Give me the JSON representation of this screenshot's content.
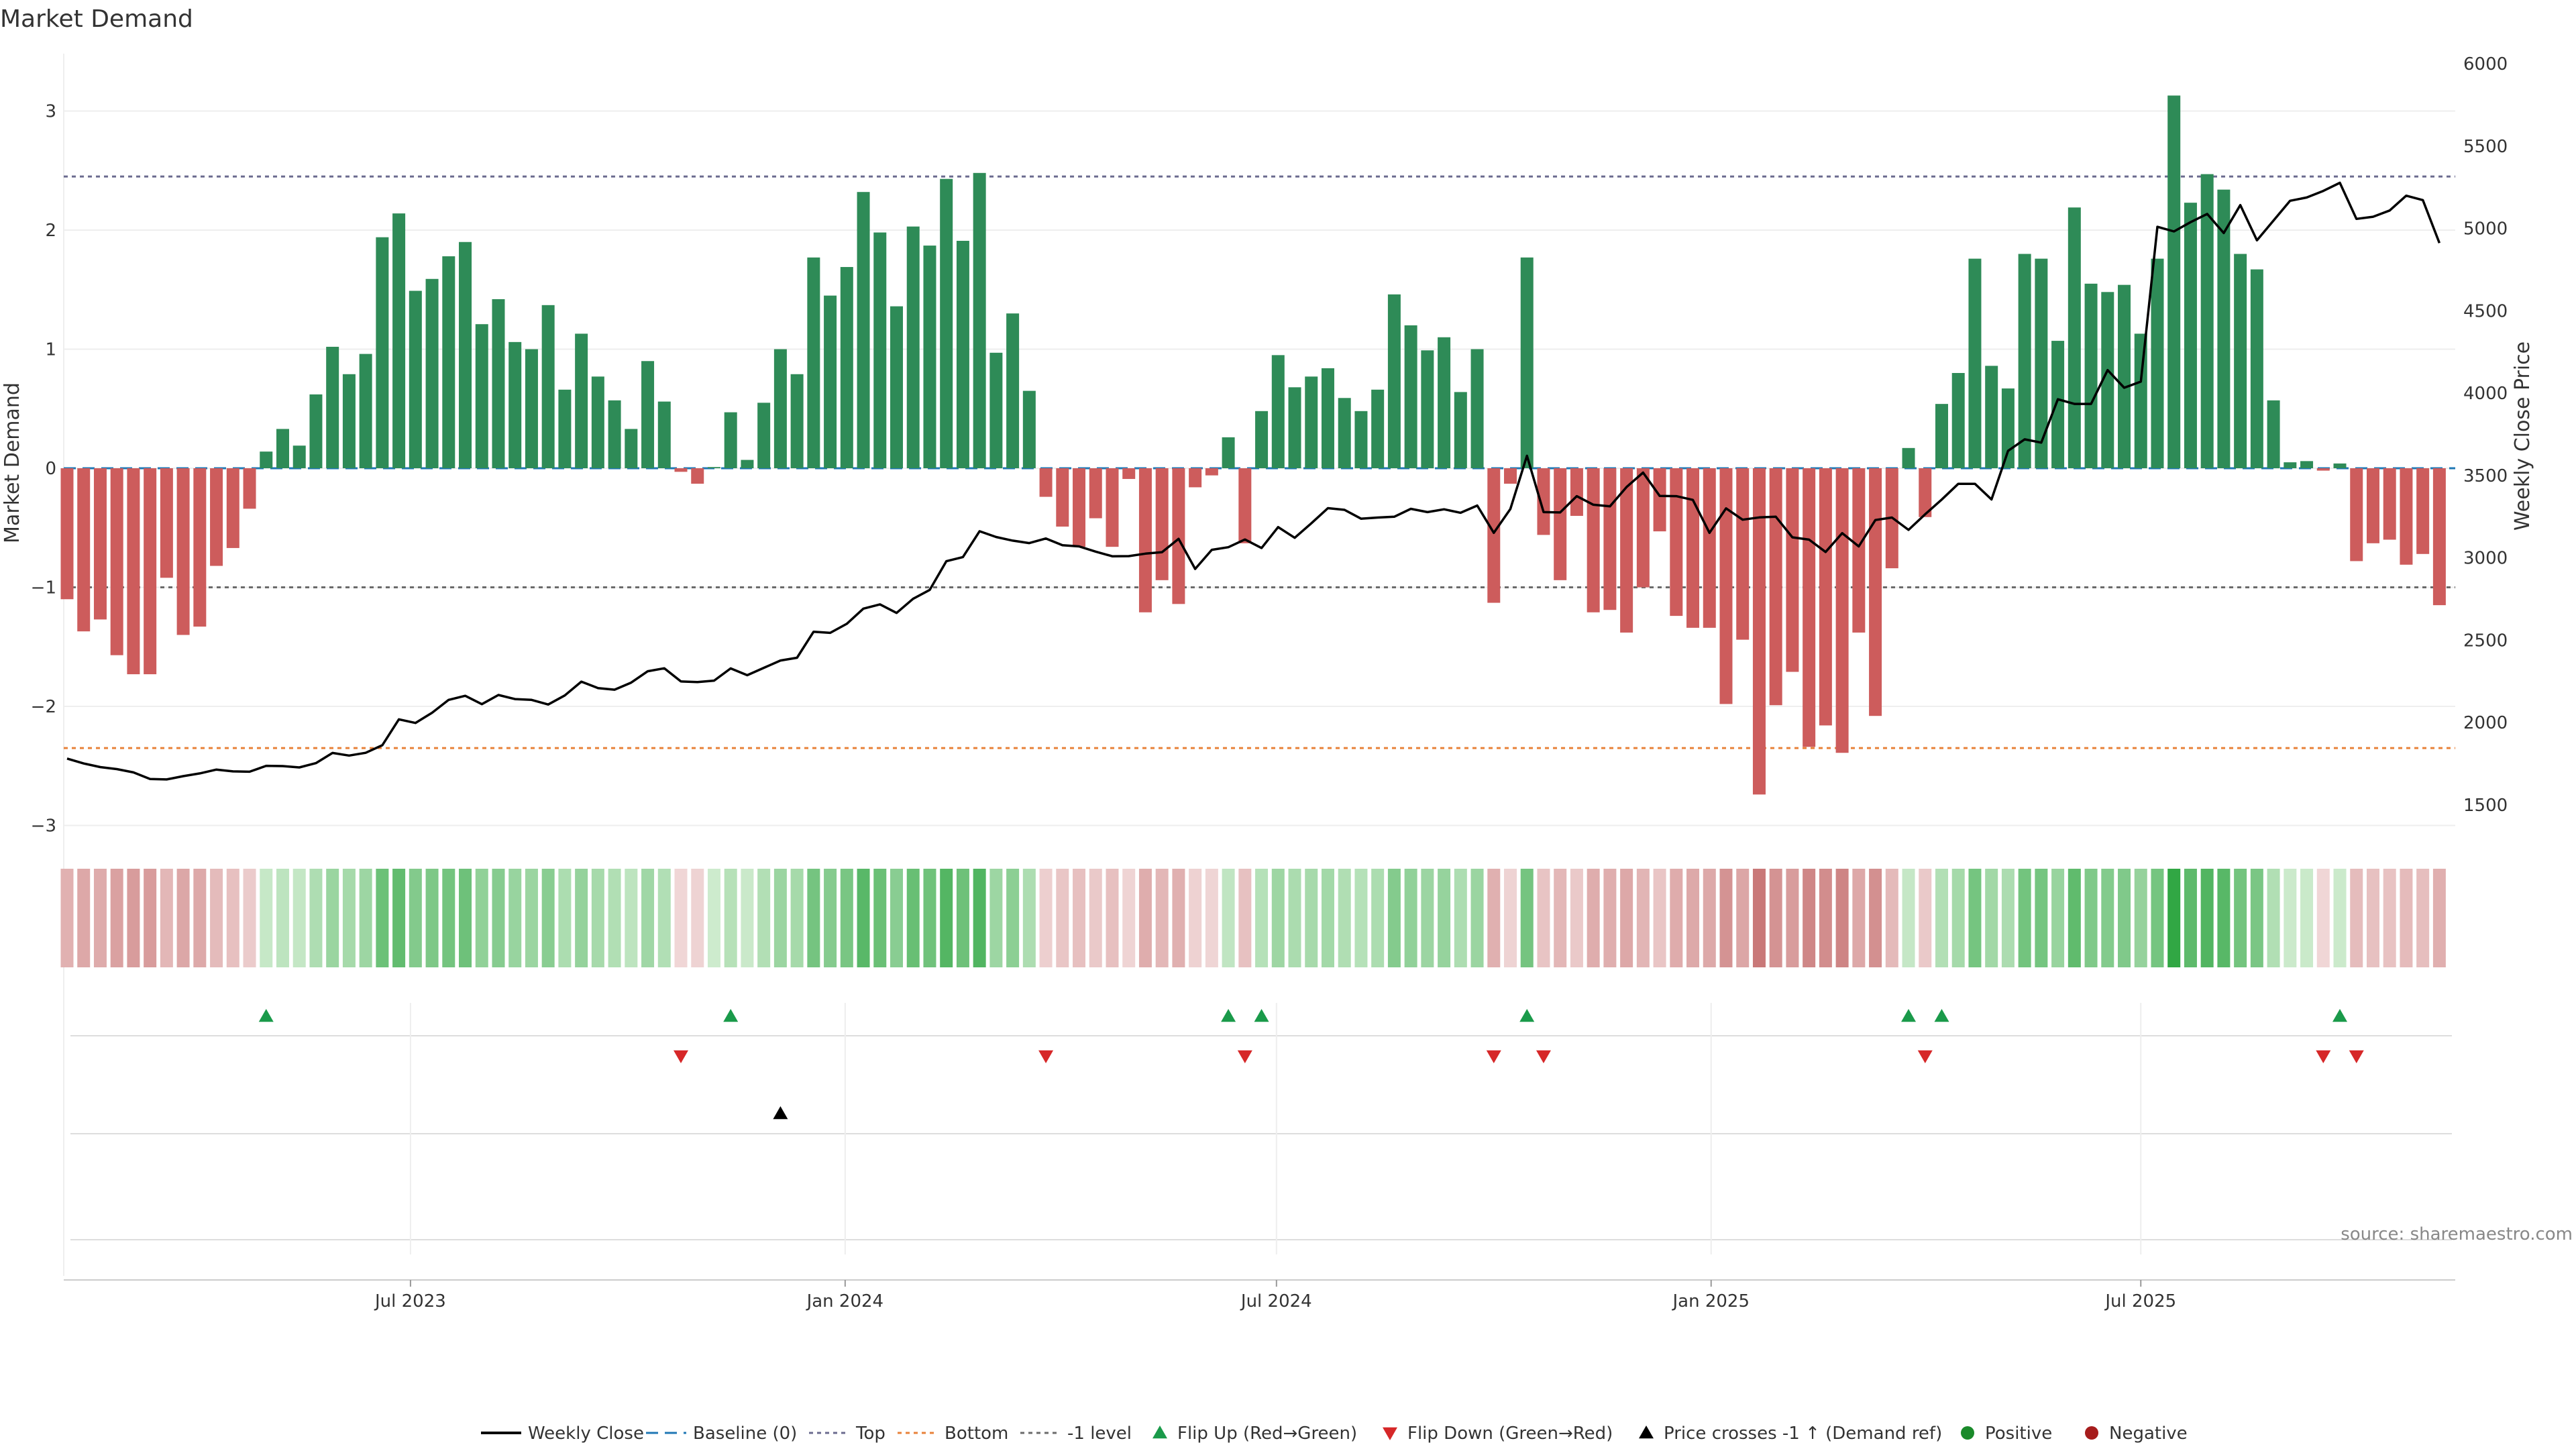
{
  "chart_data": {
    "type": "bar",
    "title": "Market Demand",
    "ylabel_left": "Market Demand",
    "ylabel_right": "Weekly Close Price",
    "ylim_left": [
      -3.2,
      3.5
    ],
    "ylim_right": [
      1300,
      6000
    ],
    "yticks_left": [
      3,
      2,
      1,
      0,
      -1,
      -2,
      -3
    ],
    "ytick_labels_left": [
      "3",
      "2",
      "1",
      "0",
      "−1",
      "−2",
      "−3"
    ],
    "yticks_right": [
      6000,
      5500,
      5000,
      4500,
      4000,
      3500,
      3000,
      2500,
      2000,
      1500
    ],
    "ytick_labels_right": [
      "6000",
      "5500",
      "5000",
      "4500",
      "4000",
      "3500",
      "3000",
      "2500",
      "2000",
      "1500"
    ],
    "xtick_labels": [
      "Jul 2023",
      "Jan 2024",
      "Jul 2024",
      "Jan 2025",
      "Jul 2025"
    ],
    "xtick_weeks": [
      20.7,
      46.9,
      72.9,
      99.1,
      125.0
    ],
    "levels": {
      "top": 2.45,
      "bottom": -2.35,
      "minus_one": -1.0,
      "baseline": 0
    },
    "demand": [
      -1.1,
      -1.37,
      -1.27,
      -1.57,
      -1.73,
      -1.73,
      -0.92,
      -1.4,
      -1.33,
      -0.82,
      -0.67,
      -0.34,
      0.14,
      0.33,
      0.19,
      0.62,
      1.02,
      0.79,
      0.96,
      1.94,
      2.14,
      1.49,
      1.59,
      1.78,
      1.9,
      1.21,
      1.42,
      1.06,
      1.0,
      1.37,
      0.66,
      1.13,
      0.77,
      0.57,
      0.33,
      0.9,
      0.56,
      -0.03,
      -0.13,
      0.01,
      0.47,
      0.07,
      0.55,
      1.0,
      0.79,
      1.77,
      1.45,
      1.69,
      2.32,
      1.98,
      1.36,
      2.03,
      1.87,
      2.43,
      1.91,
      2.48,
      0.97,
      1.3,
      0.65,
      -0.24,
      -0.49,
      -0.66,
      -0.42,
      -0.66,
      -0.09,
      -1.21,
      -0.94,
      -1.14,
      -0.16,
      -0.06,
      0.26,
      -0.63,
      0.48,
      0.95,
      0.68,
      0.77,
      0.84,
      0.59,
      0.48,
      0.66,
      1.46,
      1.2,
      0.99,
      1.1,
      0.64,
      1.0,
      -1.13,
      -0.13,
      1.77,
      -0.56,
      -0.94,
      -0.4,
      -1.21,
      -1.19,
      -1.38,
      -1.0,
      -0.53,
      -1.24,
      -1.34,
      -1.34,
      -1.98,
      -1.44,
      -2.74,
      -1.99,
      -1.71,
      -2.34,
      -2.16,
      -2.39,
      -1.38,
      -2.08,
      -0.84,
      0.17,
      -0.41,
      0.54,
      0.8,
      1.76,
      0.86,
      0.67,
      1.8,
      1.76,
      1.07,
      2.19,
      1.55,
      1.48,
      1.54,
      1.13,
      1.76,
      3.13,
      2.23,
      2.47,
      2.34,
      1.8,
      1.67,
      0.57,
      0.05,
      0.06,
      -0.02,
      0.04,
      -0.78,
      -0.63,
      -0.6,
      -0.81,
      -0.72,
      -1.15
    ],
    "close": [
      1782,
      1752,
      1730,
      1718,
      1698,
      1658,
      1655,
      1675,
      1692,
      1715,
      1704,
      1702,
      1738,
      1736,
      1728,
      1754,
      1816,
      1800,
      1817,
      1863,
      2020,
      1998,
      2060,
      2138,
      2163,
      2112,
      2168,
      2143,
      2138,
      2110,
      2165,
      2249,
      2210,
      2200,
      2243,
      2312,
      2330,
      2250,
      2246,
      2255,
      2329,
      2288,
      2333,
      2377,
      2394,
      2552,
      2545,
      2600,
      2692,
      2718,
      2666,
      2752,
      2806,
      2980,
      3005,
      3162,
      3127,
      3105,
      3090,
      3118,
      3077,
      3070,
      3038,
      3010,
      3011,
      3026,
      3035,
      3116,
      2933,
      3049,
      3065,
      3112,
      3060,
      3187,
      3122,
      3210,
      3302,
      3292,
      3238,
      3245,
      3250,
      3298,
      3278,
      3295,
      3274,
      3318,
      3152,
      3297,
      3620,
      3278,
      3276,
      3375,
      3323,
      3313,
      3430,
      3518,
      3376,
      3375,
      3352,
      3152,
      3301,
      3232,
      3246,
      3250,
      3125,
      3111,
      3036,
      3150,
      3070,
      3230,
      3245,
      3170,
      3265,
      3354,
      3450,
      3450,
      3355,
      3650,
      3720,
      3700,
      3963,
      3935,
      3935,
      4140,
      4033,
      4070,
      5010,
      4982,
      5038,
      5088,
      4972,
      5142,
      4928,
      5048,
      5168,
      5188,
      5228,
      5277,
      5058,
      5071,
      5109,
      5199,
      5172,
      4912
    ],
    "heat_strip_values": [
      -1.1,
      -1.37,
      -1.27,
      -1.57,
      -1.73,
      -1.73,
      -0.92,
      -1.4,
      -1.33,
      -0.82,
      -0.67,
      -0.34,
      0.14,
      0.33,
      0.19,
      0.62,
      1.02,
      0.79,
      0.96,
      1.94,
      2.14,
      1.49,
      1.59,
      1.78,
      1.9,
      1.21,
      1.42,
      1.06,
      1.0,
      1.37,
      0.66,
      1.13,
      0.77,
      0.57,
      0.33,
      0.9,
      0.56,
      -0.03,
      -0.13,
      0.01,
      0.47,
      0.07,
      0.55,
      1.0,
      0.79,
      1.77,
      1.45,
      1.69,
      2.32,
      1.98,
      1.36,
      2.03,
      1.87,
      2.43,
      1.91,
      2.48,
      0.97,
      1.3,
      0.65,
      -0.24,
      -0.49,
      -0.66,
      -0.42,
      -0.66,
      -0.09,
      -1.21,
      -0.94,
      -1.14,
      -0.16,
      -0.06,
      0.26,
      -0.63,
      0.48,
      0.95,
      0.68,
      0.77,
      0.84,
      0.59,
      0.48,
      0.66,
      1.46,
      1.2,
      0.99,
      1.1,
      0.64,
      1.0,
      -1.13,
      -0.13,
      1.77,
      -0.56,
      -0.94,
      -0.4,
      -1.21,
      -1.19,
      -1.38,
      -1.0,
      -0.53,
      -1.24,
      -1.34,
      -1.34,
      -1.98,
      -1.44,
      -2.74,
      -1.99,
      -1.71,
      -2.34,
      -2.16,
      -2.39,
      -1.38,
      -2.08,
      -0.84,
      0.17,
      -0.41,
      0.54,
      0.8,
      1.76,
      0.86,
      0.67,
      1.8,
      1.76,
      1.07,
      2.19,
      1.55,
      1.48,
      1.54,
      1.13,
      1.76,
      3.13,
      2.23,
      2.47,
      2.34,
      1.8,
      1.67,
      0.57,
      0.05,
      0.06,
      -0.02,
      0.04,
      -0.78,
      -0.63,
      -0.6,
      -0.81,
      -0.72,
      -1.15
    ],
    "flip_up_weeks": [
      12,
      40,
      70,
      72,
      88,
      111,
      113,
      137
    ],
    "flip_down_weeks": [
      37,
      59,
      71,
      86,
      89,
      112,
      136,
      138
    ],
    "price_cross_weeks": [
      43
    ],
    "colors": {
      "positive_bar": "#2e8b57",
      "negative_bar": "#cd5c5c",
      "close_line": "#000000",
      "baseline": "#1f77b4",
      "top": "#6b6b8f",
      "bottom": "#e8823a",
      "minus_one": "#6b6b6b",
      "flip_up": "#1a9a4a",
      "flip_down": "#d62728",
      "price_cross": "#000000",
      "positive_dot": "#1a8a2a",
      "negative_dot": "#a61c1c"
    },
    "legend": [
      {
        "label": "Weekly Close",
        "kind": "line"
      },
      {
        "label": "Baseline (0)",
        "kind": "baseline"
      },
      {
        "label": "Top",
        "kind": "top"
      },
      {
        "label": "Bottom",
        "kind": "bottom"
      },
      {
        "label": "-1 level",
        "kind": "minus_one"
      },
      {
        "label": "Flip Up (Red→Green)",
        "kind": "flip_up"
      },
      {
        "label": "Flip Down (Green→Red)",
        "kind": "flip_down"
      },
      {
        "label": "Price crosses -1 ↑ (Demand ref)",
        "kind": "price_cross"
      },
      {
        "label": "Positive",
        "kind": "positive_dot"
      },
      {
        "label": "Negative",
        "kind": "negative_dot"
      }
    ],
    "source": "source: sharemaestro.com"
  }
}
